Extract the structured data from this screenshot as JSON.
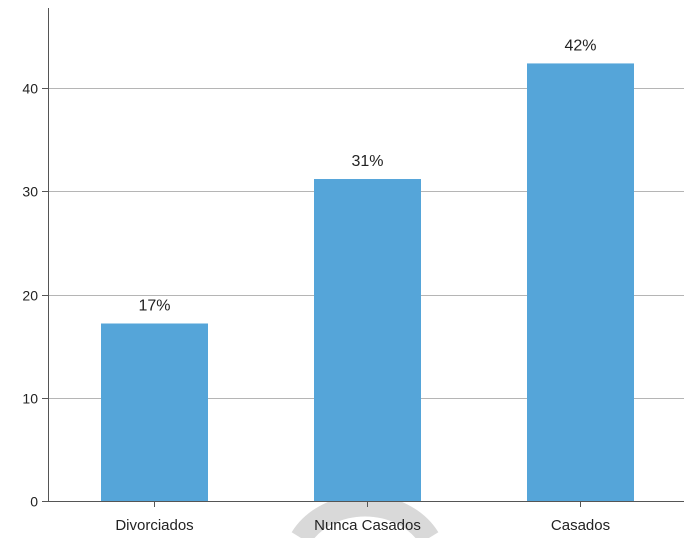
{
  "chart_data": {
    "type": "bar",
    "title": "",
    "xlabel": "",
    "ylabel": "",
    "categories": [
      "Divorciados",
      "Nunca Casados",
      "Casados"
    ],
    "values": [
      17.2,
      31.2,
      42.4
    ],
    "data_labels": [
      "17%",
      "31%",
      "42%"
    ],
    "ylim": [
      0,
      50
    ],
    "yticks": [
      0,
      10,
      20,
      30,
      40
    ],
    "ytick_labels": [
      "0",
      "10",
      "20",
      "30",
      "40"
    ],
    "grid": true,
    "legend": "none",
    "colors": {
      "bar": "#55a5d9",
      "grid": "#b5b5b5",
      "axis": "#555555",
      "watermark": "#d9d9d9"
    }
  }
}
